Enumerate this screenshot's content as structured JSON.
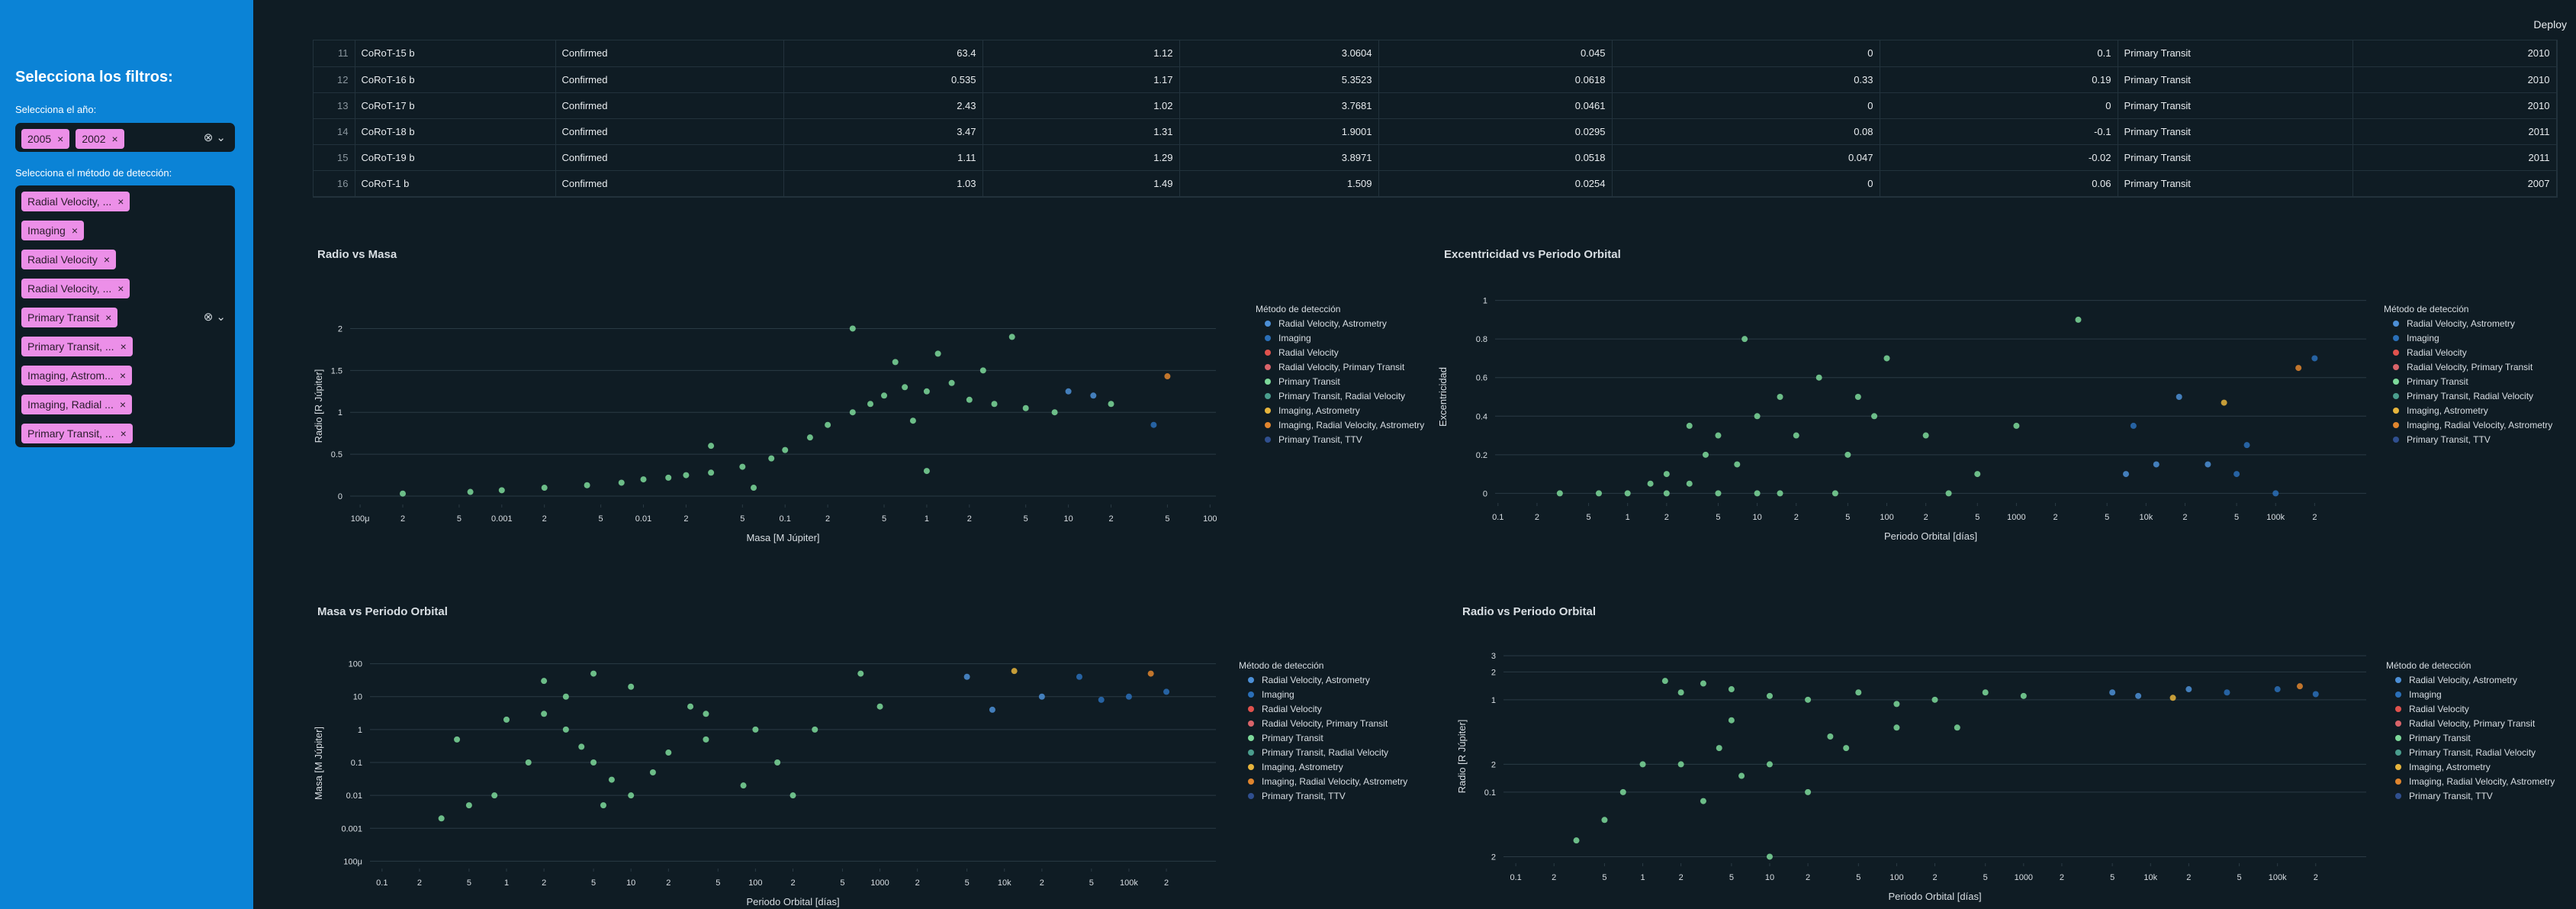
{
  "header": {
    "deploy": "Deploy"
  },
  "sidebar": {
    "title": "Selecciona los filtros:",
    "year_label": "Selecciona el año:",
    "years": [
      "2005",
      "2002"
    ],
    "method_label": "Selecciona el método de detección:",
    "methods": [
      "Radial Velocity, ...",
      "Imaging",
      "Radial Velocity",
      "Radial Velocity, ...",
      "Primary Transit",
      "Primary Transit, ...",
      "Imaging, Astrom...",
      "Imaging, Radial ...",
      "Primary Transit, ..."
    ]
  },
  "table": {
    "rows": [
      [
        "11",
        "CoRoT-15 b",
        "Confirmed",
        "63.4",
        "1.12",
        "3.0604",
        "0.045",
        "0",
        "0.1",
        "Primary Transit",
        "2010"
      ],
      [
        "12",
        "CoRoT-16 b",
        "Confirmed",
        "0.535",
        "1.17",
        "5.3523",
        "0.0618",
        "0.33",
        "0.19",
        "Primary Transit",
        "2010"
      ],
      [
        "13",
        "CoRoT-17 b",
        "Confirmed",
        "2.43",
        "1.02",
        "3.7681",
        "0.0461",
        "0",
        "0",
        "Primary Transit",
        "2010"
      ],
      [
        "14",
        "CoRoT-18 b",
        "Confirmed",
        "3.47",
        "1.31",
        "1.9001",
        "0.0295",
        "0.08",
        "-0.1",
        "Primary Transit",
        "2011"
      ],
      [
        "15",
        "CoRoT-19 b",
        "Confirmed",
        "1.11",
        "1.29",
        "3.8971",
        "0.0518",
        "0.047",
        "-0.02",
        "Primary Transit",
        "2011"
      ],
      [
        "16",
        "CoRoT-1 b",
        "Confirmed",
        "1.03",
        "1.49",
        "1.509",
        "0.0254",
        "0",
        "0.06",
        "Primary Transit",
        "2007"
      ]
    ]
  },
  "chart_data": [
    {
      "type": "scatter",
      "title": "Radio vs Masa",
      "x_label": "Masa [M Júpiter]",
      "y_label": "Radio [R Júpiter]",
      "legend_title": "Método de detección",
      "xlog": true,
      "ylog": false,
      "grid": true,
      "xlim": [
        8.5e-05,
        110
      ],
      "ylim": [
        -0.1,
        2.25
      ],
      "xticks": [
        {
          "value": 0.0001,
          "label": "100μ"
        },
        {
          "value": 0.0002,
          "label": "2"
        },
        {
          "value": 0.0005,
          "label": "5"
        },
        0.001,
        {
          "value": 0.002,
          "label": "2"
        },
        {
          "value": 0.005,
          "label": "5"
        },
        0.01,
        {
          "value": 0.02,
          "label": "2"
        },
        {
          "value": 0.05,
          "label": "5"
        },
        0.1,
        {
          "value": 0.2,
          "label": "2"
        },
        {
          "value": 0.5,
          "label": "5"
        },
        1,
        {
          "value": 2,
          "label": "2"
        },
        {
          "value": 5,
          "label": "5"
        },
        10,
        {
          "value": 20,
          "label": "2"
        },
        {
          "value": 50,
          "label": "5"
        },
        100
      ],
      "yticks": [
        0,
        0.5,
        1,
        1.5,
        2
      ],
      "series": [
        {
          "name": "Radial Velocity, Astrometry",
          "color": "#4c8fd6",
          "x": [
            15,
            10
          ],
          "y": [
            1.2,
            1.25
          ]
        },
        {
          "name": "Imaging",
          "color": "#2a6fb8",
          "x": [
            40
          ],
          "y": [
            0.85
          ]
        },
        {
          "name": "Radial Velocity",
          "color": "#e0524d",
          "x": [],
          "y": []
        },
        {
          "name": "Radial Velocity, Primary Transit",
          "color": "#d9646a",
          "x": [],
          "y": []
        },
        {
          "name": "Primary Transit",
          "color": "#7dd99a",
          "x": [
            0.0002,
            0.0006,
            0.001,
            0.002,
            0.004,
            0.007,
            0.01,
            0.015,
            0.02,
            0.03,
            0.05,
            0.08,
            0.1,
            0.15,
            0.2,
            0.3,
            0.4,
            0.5,
            0.7,
            1,
            1.5,
            2,
            3,
            0.6,
            1.2,
            0.8,
            2.5,
            5,
            8,
            0.03,
            0.3,
            4,
            1,
            20,
            0.06
          ],
          "y": [
            0.03,
            0.05,
            0.07,
            0.1,
            0.13,
            0.16,
            0.2,
            0.22,
            0.25,
            0.28,
            0.35,
            0.45,
            0.55,
            0.7,
            0.85,
            1,
            1.1,
            1.2,
            1.3,
            1.25,
            1.35,
            1.15,
            1.1,
            1.6,
            1.7,
            0.9,
            1.5,
            1.05,
            1,
            0.6,
            2,
            1.9,
            0.3,
            1.1,
            0.1
          ]
        },
        {
          "name": "Primary Transit, Radial Velocity",
          "color": "#4a9e8e",
          "x": [],
          "y": []
        },
        {
          "name": "Imaging, Astrometry",
          "color": "#e6b43c",
          "x": [],
          "y": []
        },
        {
          "name": "Imaging, Radial Velocity, Astrometry",
          "color": "#e0852e",
          "x": [
            50
          ],
          "y": [
            1.43
          ]
        },
        {
          "name": "Primary Transit, TTV",
          "color": "#2f4f8f",
          "x": [],
          "y": []
        }
      ]
    },
    {
      "type": "scatter",
      "title": "Excentricidad vs Periodo Orbital",
      "x_label": "Periodo Orbital [días]",
      "y_label": "Excentricidad",
      "legend_title": "Método de detección",
      "xlog": true,
      "ylog": false,
      "grid": true,
      "xlim": [
        0.095,
        500000
      ],
      "ylim": [
        -0.05,
        1.05
      ],
      "xticks": [
        0.1,
        {
          "value": 0.2,
          "label": "2"
        },
        {
          "value": 0.5,
          "label": "5"
        },
        1,
        {
          "value": 2,
          "label": "2"
        },
        {
          "value": 5,
          "label": "5"
        },
        10,
        {
          "value": 20,
          "label": "2"
        },
        {
          "value": 50,
          "label": "5"
        },
        100,
        {
          "value": 200,
          "label": "2"
        },
        {
          "value": 500,
          "label": "5"
        },
        1000,
        {
          "value": 2000,
          "label": "2"
        },
        {
          "value": 5000,
          "label": "5"
        },
        {
          "value": 10000,
          "label": "10k"
        },
        {
          "value": 20000,
          "label": "2"
        },
        {
          "value": 50000,
          "label": "5"
        },
        {
          "value": 100000,
          "label": "100k"
        },
        {
          "value": 200000,
          "label": "2"
        }
      ],
      "yticks": [
        0,
        0.2,
        0.4,
        0.6,
        0.8,
        1
      ],
      "series": [
        {
          "name": "Radial Velocity, Astrometry",
          "color": "#4c8fd6",
          "x": [
            7000,
            12000,
            18000,
            30000
          ],
          "y": [
            0.1,
            0.15,
            0.5,
            0.15
          ]
        },
        {
          "name": "Imaging",
          "color": "#2a6fb8",
          "x": [
            50000,
            100000,
            200000,
            8000,
            60000
          ],
          "y": [
            0.1,
            0,
            0.7,
            0.35,
            0.25
          ]
        },
        {
          "name": "Radial Velocity",
          "color": "#e0524d",
          "x": [],
          "y": []
        },
        {
          "name": "Radial Velocity, Primary Transit",
          "color": "#d9646a",
          "x": [],
          "y": []
        },
        {
          "name": "Primary Transit",
          "color": "#7dd99a",
          "x": [
            0.3,
            0.6,
            1,
            1.5,
            2,
            3,
            4,
            5,
            7,
            10,
            15,
            20,
            30,
            50,
            80,
            100,
            200,
            500,
            1000,
            3000,
            2,
            5,
            10,
            40,
            8,
            300,
            15,
            3,
            60
          ],
          "y": [
            0,
            0,
            0,
            0.05,
            0.1,
            0.05,
            0.2,
            0.3,
            0.15,
            0.4,
            0.5,
            0.3,
            0.6,
            0.2,
            0.4,
            0.7,
            0.3,
            0.1,
            0.35,
            0.9,
            0,
            0,
            0,
            0,
            0.8,
            0,
            0,
            0.35,
            0.5
          ]
        },
        {
          "name": "Primary Transit, Radial Velocity",
          "color": "#4a9e8e",
          "x": [],
          "y": []
        },
        {
          "name": "Imaging, Astrometry",
          "color": "#e6b43c",
          "x": [
            40000
          ],
          "y": [
            0.47
          ]
        },
        {
          "name": "Imaging, Radial Velocity, Astrometry",
          "color": "#e0852e",
          "x": [
            150000
          ],
          "y": [
            0.65
          ]
        },
        {
          "name": "Primary Transit, TTV",
          "color": "#2f4f8f",
          "x": [],
          "y": []
        }
      ]
    },
    {
      "type": "scatter",
      "title": "Masa vs Periodo Orbital",
      "x_label": "Periodo Orbital [días]",
      "y_label": "Masa [M Júpiter]",
      "legend_title": "Método de detección",
      "xlog": true,
      "ylog": true,
      "grid": true,
      "xlim": [
        0.08,
        500000
      ],
      "ylim": [
        6e-05,
        150
      ],
      "xticks": [
        0.1,
        {
          "value": 0.2,
          "label": "2"
        },
        {
          "value": 0.5,
          "label": "5"
        },
        1,
        {
          "value": 2,
          "label": "2"
        },
        {
          "value": 5,
          "label": "5"
        },
        10,
        {
          "value": 20,
          "label": "2"
        },
        {
          "value": 50,
          "label": "5"
        },
        100,
        {
          "value": 200,
          "label": "2"
        },
        {
          "value": 500,
          "label": "5"
        },
        1000,
        {
          "value": 2000,
          "label": "2"
        },
        {
          "value": 5000,
          "label": "5"
        },
        {
          "value": 10000,
          "label": "10k"
        },
        {
          "value": 20000,
          "label": "2"
        },
        {
          "value": 50000,
          "label": "5"
        },
        {
          "value": 100000,
          "label": "100k"
        },
        {
          "value": 200000,
          "label": "2"
        }
      ],
      "yticks": [
        {
          "value": 0.0001,
          "label": "100μ"
        },
        0.001,
        0.01,
        0.1,
        1,
        10,
        100
      ],
      "series": [
        {
          "name": "Radial Velocity, Astrometry",
          "color": "#4c8fd6",
          "x": [
            5000,
            8000,
            20000
          ],
          "y": [
            40,
            4,
            10
          ]
        },
        {
          "name": "Imaging",
          "color": "#2a6fb8",
          "x": [
            40000,
            100000,
            200000,
            60000
          ],
          "y": [
            40,
            10,
            14,
            8
          ]
        },
        {
          "name": "Radial Velocity",
          "color": "#e0524d",
          "x": [],
          "y": []
        },
        {
          "name": "Radial Velocity, Primary Transit",
          "color": "#d9646a",
          "x": [],
          "y": []
        },
        {
          "name": "Primary Transit",
          "color": "#7dd99a",
          "x": [
            0.4,
            1,
            2,
            3,
            4,
            5,
            7,
            10,
            15,
            20,
            40,
            80,
            150,
            300,
            1000,
            2,
            5,
            10,
            30,
            0.8,
            0.5,
            0.3,
            1.5,
            3,
            6,
            40,
            100,
            200,
            700
          ],
          "y": [
            0.5,
            2,
            3,
            1,
            0.3,
            0.1,
            0.03,
            0.01,
            0.05,
            0.2,
            0.5,
            0.02,
            0.1,
            1,
            5,
            30,
            50,
            20,
            5,
            0.01,
            0.005,
            0.002,
            0.1,
            10,
            0.005,
            3,
            1,
            0.01,
            50
          ]
        },
        {
          "name": "Primary Transit, Radial Velocity",
          "color": "#4a9e8e",
          "x": [],
          "y": []
        },
        {
          "name": "Imaging, Astrometry",
          "color": "#e6b43c",
          "x": [
            12000
          ],
          "y": [
            60
          ]
        },
        {
          "name": "Imaging, Radial Velocity, Astrometry",
          "color": "#e0852e",
          "x": [
            150000
          ],
          "y": [
            50
          ]
        },
        {
          "name": "Primary Transit, TTV",
          "color": "#2f4f8f",
          "x": [],
          "y": []
        }
      ]
    },
    {
      "type": "scatter",
      "title": "Radio vs Periodo Orbital",
      "x_label": "Periodo Orbital [días]",
      "y_label": "Radio [R Júpiter]",
      "legend_title": "Método de detección",
      "xlog": true,
      "ylog": true,
      "grid": true,
      "xlim": [
        0.08,
        500000
      ],
      "ylim": [
        0.017,
        3.5
      ],
      "xticks": [
        0.1,
        {
          "value": 0.2,
          "label": "2"
        },
        {
          "value": 0.5,
          "label": "5"
        },
        1,
        {
          "value": 2,
          "label": "2"
        },
        {
          "value": 5,
          "label": "5"
        },
        10,
        {
          "value": 20,
          "label": "2"
        },
        {
          "value": 50,
          "label": "5"
        },
        100,
        {
          "value": 200,
          "label": "2"
        },
        {
          "value": 500,
          "label": "5"
        },
        1000,
        {
          "value": 2000,
          "label": "2"
        },
        {
          "value": 5000,
          "label": "5"
        },
        {
          "value": 10000,
          "label": "10k"
        },
        {
          "value": 20000,
          "label": "2"
        },
        {
          "value": 50000,
          "label": "5"
        },
        {
          "value": 100000,
          "label": "100k"
        },
        {
          "value": 200000,
          "label": "2"
        }
      ],
      "yticks": [
        {
          "value": 0.02,
          "label": "2"
        },
        0.1,
        {
          "value": 0.2,
          "label": "2"
        },
        1,
        {
          "value": 2,
          "label": "2"
        },
        3
      ],
      "series": [
        {
          "name": "Radial Velocity, Astrometry",
          "color": "#4c8fd6",
          "x": [
            5000,
            8000,
            20000
          ],
          "y": [
            1.2,
            1.1,
            1.3
          ]
        },
        {
          "name": "Imaging",
          "color": "#2a6fb8",
          "x": [
            40000,
            100000,
            200000
          ],
          "y": [
            1.2,
            1.3,
            1.15
          ]
        },
        {
          "name": "Radial Velocity",
          "color": "#e0524d",
          "x": [],
          "y": []
        },
        {
          "name": "Radial Velocity, Primary Transit",
          "color": "#d9646a",
          "x": [],
          "y": []
        },
        {
          "name": "Primary Transit",
          "color": "#7dd99a",
          "x": [
            0.3,
            0.5,
            0.7,
            1,
            2,
            3,
            5,
            10,
            20,
            50,
            100,
            200,
            500,
            1000,
            2,
            4,
            6,
            10,
            20,
            40,
            100,
            300,
            10,
            3,
            1.5,
            5,
            30
          ],
          "y": [
            0.03,
            0.05,
            0.1,
            0.2,
            1.2,
            1.5,
            1.3,
            1.1,
            1,
            1.2,
            0.9,
            1,
            1.2,
            1.1,
            0.2,
            0.3,
            0.15,
            0.2,
            0.1,
            0.3,
            0.5,
            0.5,
            0.02,
            0.08,
            1.6,
            0.6,
            0.4
          ]
        },
        {
          "name": "Primary Transit, Radial Velocity",
          "color": "#4a9e8e",
          "x": [],
          "y": []
        },
        {
          "name": "Imaging, Astrometry",
          "color": "#e6b43c",
          "x": [
            15000
          ],
          "y": [
            1.05
          ]
        },
        {
          "name": "Imaging, Radial Velocity, Astrometry",
          "color": "#e0852e",
          "x": [
            150000
          ],
          "y": [
            1.4
          ]
        },
        {
          "name": "Primary Transit, TTV",
          "color": "#2f4f8f",
          "x": [],
          "y": []
        }
      ]
    }
  ]
}
